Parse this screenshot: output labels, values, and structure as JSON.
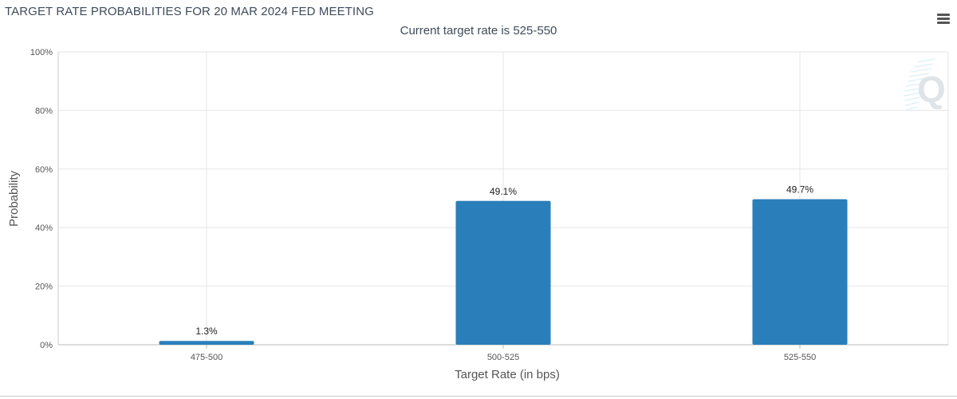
{
  "header": {
    "title": "TARGET RATE PROBABILITIES FOR 20 MAR 2024 FED MEETING",
    "subtitle": "Current target rate is 525-550"
  },
  "toolbar": {
    "menu_icon": "hamburger-menu-icon"
  },
  "watermark": {
    "icon": "quikstrike-q-logo-icon",
    "letter": "Q"
  },
  "chart_data": {
    "type": "bar",
    "title": "TARGET RATE PROBABILITIES FOR 20 MAR 2024 FED MEETING",
    "subtitle": "Current target rate is 525-550",
    "xlabel": "Target Rate (in bps)",
    "ylabel": "Probability",
    "categories": [
      "475-500",
      "500-525",
      "525-550"
    ],
    "values": [
      1.3,
      49.1,
      49.7
    ],
    "data_labels": [
      "1.3%",
      "49.1%",
      "49.7%"
    ],
    "ylim": [
      0,
      100
    ],
    "yticks": [
      "0%",
      "20%",
      "40%",
      "60%",
      "80%",
      "100%"
    ],
    "ytick_values": [
      0,
      20,
      40,
      60,
      80,
      100
    ],
    "grid": true,
    "legend": "none",
    "bar_color": "#2a7fba"
  }
}
